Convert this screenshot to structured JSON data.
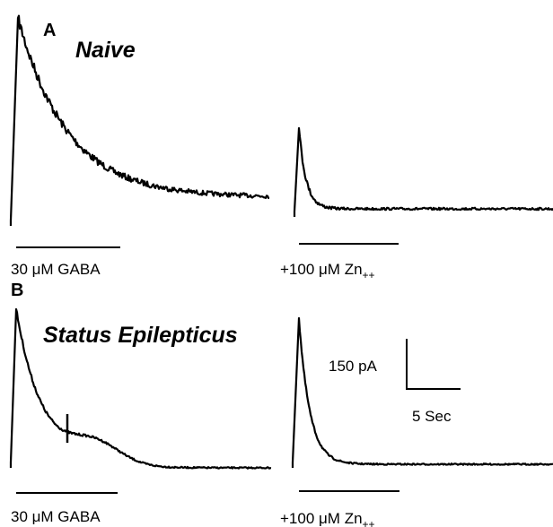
{
  "panels": [
    {
      "label": "A",
      "title": "Naive",
      "traces": [
        {
          "label": "30 μM GABA"
        },
        {
          "label": "+100 μM Zn",
          "subscript": "++"
        }
      ]
    },
    {
      "label": "B",
      "title": "Status Epilepticus",
      "traces": [
        {
          "label": "30 μM GABA"
        },
        {
          "label": "+100 μM Zn",
          "subscript": "++"
        }
      ]
    }
  ],
  "scale_bar": {
    "y_label": "150 pA",
    "x_label": "5 Sec"
  }
}
